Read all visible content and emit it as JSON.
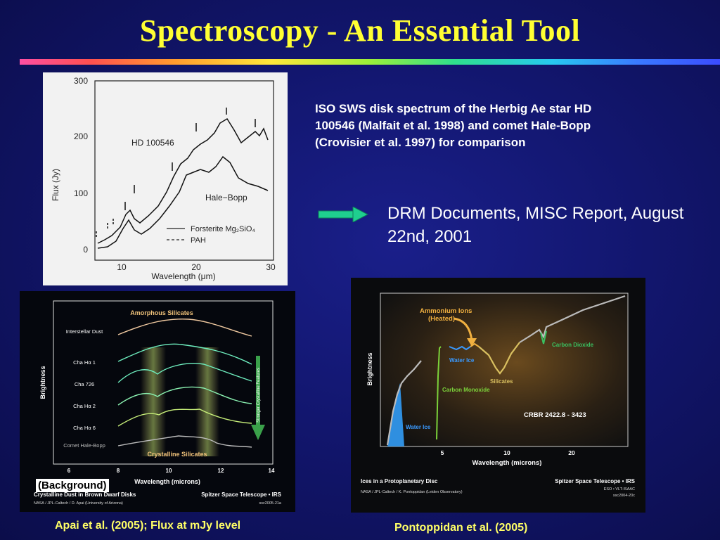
{
  "slide": {
    "title": "Spectroscopy - An Essential Tool",
    "caption_iso": "ISO SWS disk spectrum of the Herbig Ae star HD 100546  (Malfait et al. 1998) and comet Hale-Bopp (Crovisier et al. 1997) for comparison",
    "drm_text": "DRM  Documents, MISC Report, August 22nd, 2001",
    "background_tag": "(Background)",
    "caption_apai": "Apai et al. (2005); Flux at mJy level",
    "caption_pontoppidan": "Pontoppidan  et al. (2005)",
    "colors": {
      "title": "#ffff33",
      "caption": "#ffff66",
      "arrow": "#1fcf8f"
    }
  },
  "figure_iso": {
    "y_ticks": [
      "300",
      "200",
      "100",
      "0"
    ],
    "x_ticks": [
      "10",
      "20",
      "30"
    ],
    "ylabel": "Flux (Jy)",
    "xlabel": "Wavelength (μm)",
    "label_hd": "HD 100546",
    "label_hb": "Hale−Bopp",
    "legend_forsterite": "Forsterite Mg₂SiO₄",
    "legend_pah": "PAH"
  },
  "figure_apai": {
    "title_top": "Amorphous Silicates",
    "title_bottom": "Crystalline Silicates",
    "row_labels": [
      "Interstellar Dust",
      "Cha Hα 1",
      "Cha 726",
      "Cha Hα 2",
      "Cha Hα 6",
      "Comet Hale-Bopp"
    ],
    "ylabel": "Brightness",
    "xlabel": "Wavelength (microns)",
    "x_ticks": [
      "6",
      "8",
      "10",
      "12",
      "14"
    ],
    "arrow_label": "Stronger Crystalline Features",
    "footer_title": "Crystalline Dust in Brown Dwarf Disks",
    "footer_credit": "NASA / JPL-Caltech / D. Apai (University of Arizona)",
    "footer_telescope": "Spitzer Space Telescope • IRS",
    "footer_id": "ssc2005-21a"
  },
  "figure_pontoppidan": {
    "ammonium": "Ammonium Ions",
    "heated": "(Heated)",
    "water_ice": "Water Ice",
    "carbon_monoxide": "Carbon Monoxide",
    "silicates": "Silicates",
    "carbon_dioxide": "Carbon Dioxide",
    "object_id": "CRBR 2422.8 - 3423",
    "ylabel": "Brightness",
    "xlabel": "Wavelength (microns)",
    "x_ticks": [
      "5",
      "10",
      "20"
    ],
    "footer_title": "Ices in a Protoplanetary Disc",
    "footer_credit": "NASA / JPL-Caltech / K. Pontoppidan (Leiden Observatory)",
    "footer_telescope": "Spitzer Space Telescope • IRS",
    "footer_eso": "ESO • VLT-ISAAC",
    "footer_id": "ssc2004-20c"
  }
}
